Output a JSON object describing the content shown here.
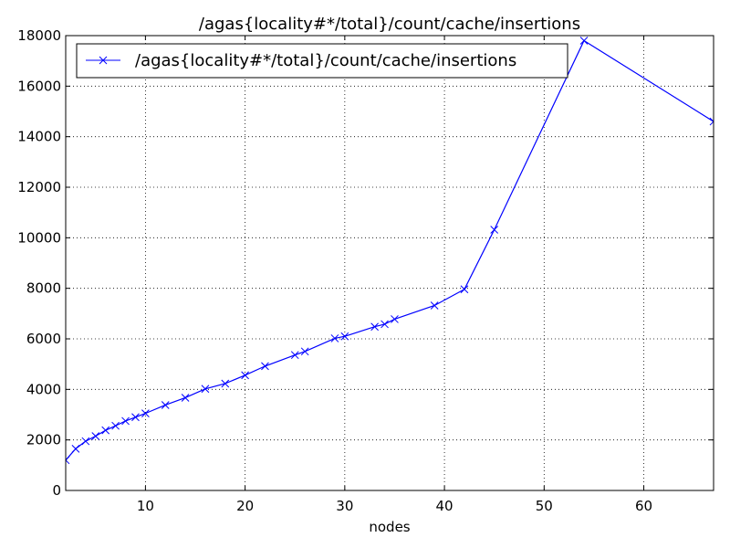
{
  "chart_data": {
    "type": "line",
    "title": "/agas{locality#*/total}/count/cache/insertions",
    "xlabel": "nodes",
    "ylabel": "",
    "xlim": [
      2,
      67
    ],
    "ylim": [
      0,
      18000
    ],
    "x_ticks": [
      10,
      20,
      30,
      40,
      50,
      60
    ],
    "y_ticks": [
      0,
      2000,
      4000,
      6000,
      8000,
      10000,
      12000,
      14000,
      16000,
      18000
    ],
    "grid": true,
    "legend_position": "top-left",
    "series": [
      {
        "name": "/agas{locality#*/total}/count/cache/insertions",
        "color": "#0000ff",
        "marker": "x",
        "x": [
          2,
          3,
          4,
          5,
          6,
          7,
          8,
          9,
          10,
          12,
          14,
          16,
          18,
          20,
          22,
          25,
          26,
          29,
          30,
          33,
          34,
          35,
          39,
          42,
          45,
          54,
          67
        ],
        "y": [
          1200,
          1650,
          1950,
          2150,
          2380,
          2560,
          2750,
          2900,
          3050,
          3380,
          3670,
          4020,
          4230,
          4560,
          4920,
          5360,
          5500,
          6020,
          6100,
          6480,
          6580,
          6780,
          7320,
          7960,
          10320,
          17800,
          14600
        ]
      }
    ]
  }
}
